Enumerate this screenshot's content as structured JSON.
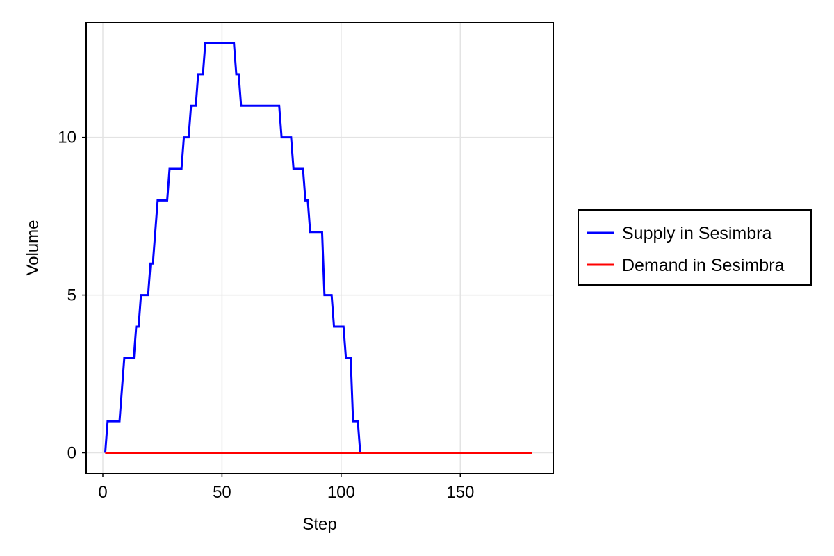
{
  "chart_data": {
    "type": "line",
    "title": "",
    "xlabel": "Step",
    "ylabel": "Volume",
    "xlim": [
      -7,
      189
    ],
    "ylim": [
      -0.65,
      13.65
    ],
    "xticks": [
      0,
      50,
      100,
      150
    ],
    "yticks": [
      0,
      5,
      10
    ],
    "grid": true,
    "legend_position": "right",
    "series": [
      {
        "name": "Supply in Sesimbra",
        "color": "#0000ff",
        "points": [
          [
            1,
            0
          ],
          [
            2,
            1
          ],
          [
            7,
            1
          ],
          [
            9,
            3
          ],
          [
            13,
            3
          ],
          [
            14,
            4
          ],
          [
            15,
            4
          ],
          [
            16,
            5
          ],
          [
            19,
            5
          ],
          [
            20,
            6
          ],
          [
            21,
            6
          ],
          [
            23,
            8
          ],
          [
            27,
            8
          ],
          [
            28,
            9
          ],
          [
            33,
            9
          ],
          [
            34,
            10
          ],
          [
            36,
            10
          ],
          [
            37,
            11
          ],
          [
            39,
            11
          ],
          [
            40,
            12
          ],
          [
            42,
            12
          ],
          [
            43,
            13
          ],
          [
            55,
            13
          ],
          [
            56,
            12
          ],
          [
            57,
            12
          ],
          [
            58,
            11
          ],
          [
            74,
            11
          ],
          [
            75,
            10
          ],
          [
            79,
            10
          ],
          [
            80,
            9
          ],
          [
            84,
            9
          ],
          [
            85,
            8
          ],
          [
            86,
            8
          ],
          [
            87,
            7
          ],
          [
            92,
            7
          ],
          [
            93,
            5
          ],
          [
            96,
            5
          ],
          [
            97,
            4
          ],
          [
            101,
            4
          ],
          [
            102,
            3
          ],
          [
            104,
            3
          ],
          [
            105,
            1
          ],
          [
            107,
            1
          ],
          [
            108,
            0
          ],
          [
            180,
            0
          ]
        ]
      },
      {
        "name": "Demand in Sesimbra",
        "color": "#ff0000",
        "points": [
          [
            1,
            0
          ],
          [
            180,
            0
          ]
        ]
      }
    ]
  }
}
